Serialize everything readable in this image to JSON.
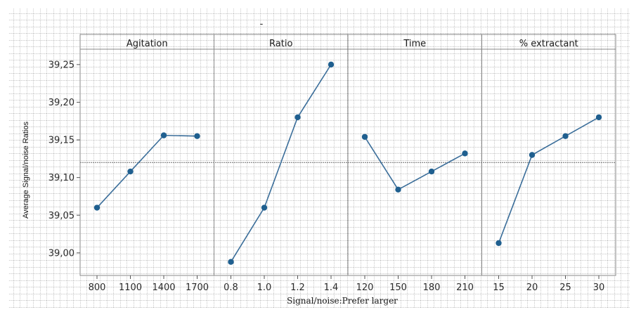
{
  "chart_data": {
    "type": "line",
    "xlabel": "Signal/noise:Prefer larger",
    "ylabel": "Average Signal/noise Ratios",
    "ylim": [
      38.97,
      39.29
    ],
    "yticks": [
      39.0,
      39.05,
      39.1,
      39.15,
      39.2,
      39.25
    ],
    "ytick_labels": [
      "39,00",
      "39,05",
      "39,10",
      "39,15",
      "39,20",
      "39,25"
    ],
    "mean_line": 39.12,
    "grid": true,
    "top_marker": "-",
    "line_color": "#3b6e9a",
    "marker_color": "#1f5f8f",
    "panels": [
      {
        "title": "Agitation",
        "categories": [
          "800",
          "1100",
          "1400",
          "1700"
        ],
        "values": [
          39.06,
          39.108,
          39.156,
          39.155
        ]
      },
      {
        "title": "Ratio",
        "categories": [
          "0.8",
          "1.0",
          "1.2",
          "1.4"
        ],
        "values": [
          38.988,
          39.06,
          39.18,
          39.25
        ]
      },
      {
        "title": "Time",
        "categories": [
          "120",
          "150",
          "180",
          "210"
        ],
        "values": [
          39.154,
          39.084,
          39.108,
          39.132
        ]
      },
      {
        "title": "% extractant",
        "categories": [
          "15",
          "20",
          "25",
          "30"
        ],
        "values": [
          39.013,
          39.13,
          39.155,
          39.18
        ]
      }
    ]
  }
}
